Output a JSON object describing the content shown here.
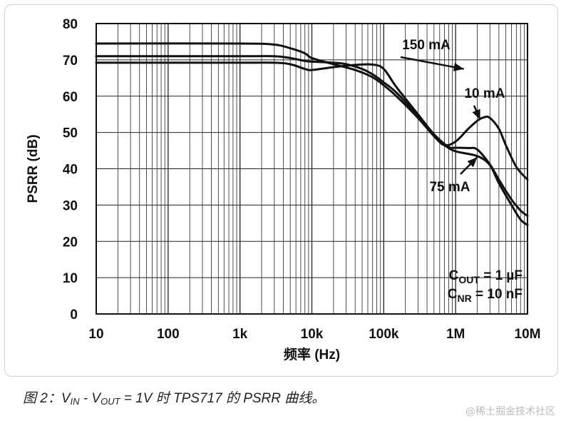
{
  "chart_data": {
    "type": "line",
    "x_scale": "log",
    "xlim": [
      10,
      10000000
    ],
    "ylim": [
      0,
      80
    ],
    "x_ticks": [
      10,
      100,
      1000,
      10000,
      100000,
      1000000,
      10000000
    ],
    "x_tick_labels": [
      "10",
      "100",
      "1k",
      "10k",
      "100k",
      "1M",
      "10M"
    ],
    "y_ticks": [
      0,
      10,
      20,
      30,
      40,
      50,
      60,
      70,
      80
    ],
    "y_tick_labels": [
      "0",
      "10",
      "20",
      "30",
      "40",
      "50",
      "60",
      "70",
      "80"
    ],
    "xlabel": "频率 (Hz)",
    "ylabel": "PSRR (dB)",
    "grid": true,
    "series": [
      {
        "name": "150 mA",
        "x": [
          10,
          1000,
          3000,
          5000,
          8000,
          10000,
          20000,
          40000,
          70000,
          100000,
          150000,
          300000,
          500000,
          800000,
          1000000,
          1500000,
          2000000,
          3000000,
          4000000,
          6000000,
          8000000,
          10000000
        ],
        "y": [
          69.2,
          69.2,
          69.2,
          68.8,
          67.5,
          67.2,
          68,
          68.6,
          68.7,
          67.5,
          62.5,
          55,
          49.5,
          46,
          45.8,
          45.7,
          45.3,
          41.2,
          37,
          31.5,
          28.5,
          27
        ]
      },
      {
        "name": "10 mA",
        "x": [
          10,
          1000,
          3000,
          5000,
          8000,
          10000,
          20000,
          40000,
          70000,
          100000,
          150000,
          300000,
          500000,
          700000,
          1000000,
          1500000,
          2000000,
          2500000,
          3000000,
          4000000,
          5000000,
          7000000,
          10000000
        ],
        "y": [
          74.5,
          74.5,
          74.2,
          73.2,
          71.8,
          70.5,
          68.8,
          67.2,
          65.2,
          63,
          60,
          54,
          49,
          46.5,
          47.5,
          51,
          53.2,
          54.2,
          54,
          51,
          46.5,
          40.5,
          37
        ]
      },
      {
        "name": "75 mA",
        "x": [
          10,
          1000,
          3000,
          5000,
          8000,
          10000,
          20000,
          30000,
          50000,
          70000,
          100000,
          150000,
          300000,
          500000,
          700000,
          1000000,
          2000000,
          3000000,
          4000000,
          6000000,
          8000000,
          10000000
        ],
        "y": [
          71,
          71,
          71,
          70.5,
          69.7,
          69.5,
          69.2,
          68.8,
          67.5,
          66,
          63.8,
          61,
          54.5,
          49,
          46.5,
          44.8,
          43.5,
          41,
          36,
          30,
          26,
          24.5
        ]
      }
    ],
    "annotations": [
      {
        "text": "150 mA",
        "x": 3000000,
        "y": 74.5,
        "arrow_to": [
          1300000,
          67.5
        ]
      },
      {
        "text": "10 mA",
        "x": 15000000,
        "y": 60.5,
        "arrow_to": [
          2200000,
          53.5
        ]
      },
      {
        "text": "75 mA",
        "x": 1500000,
        "y": 35,
        "arrow_to": [
          2000000,
          43.2
        ]
      }
    ],
    "conditions": [
      {
        "main": "C",
        "sub": "OUT",
        "rest": " = 1 µF"
      },
      {
        "main": "C",
        "sub": "NR",
        "rest": " = 10 nF"
      }
    ],
    "caption": {
      "prefix": "图 2：V",
      "sub1": "IN",
      "mid": " - V",
      "sub2": "OUT",
      "suffix": " = 1V 时 TPS717 的 PSRR 曲线。"
    }
  },
  "watermark": "@稀土掘金技术社区"
}
